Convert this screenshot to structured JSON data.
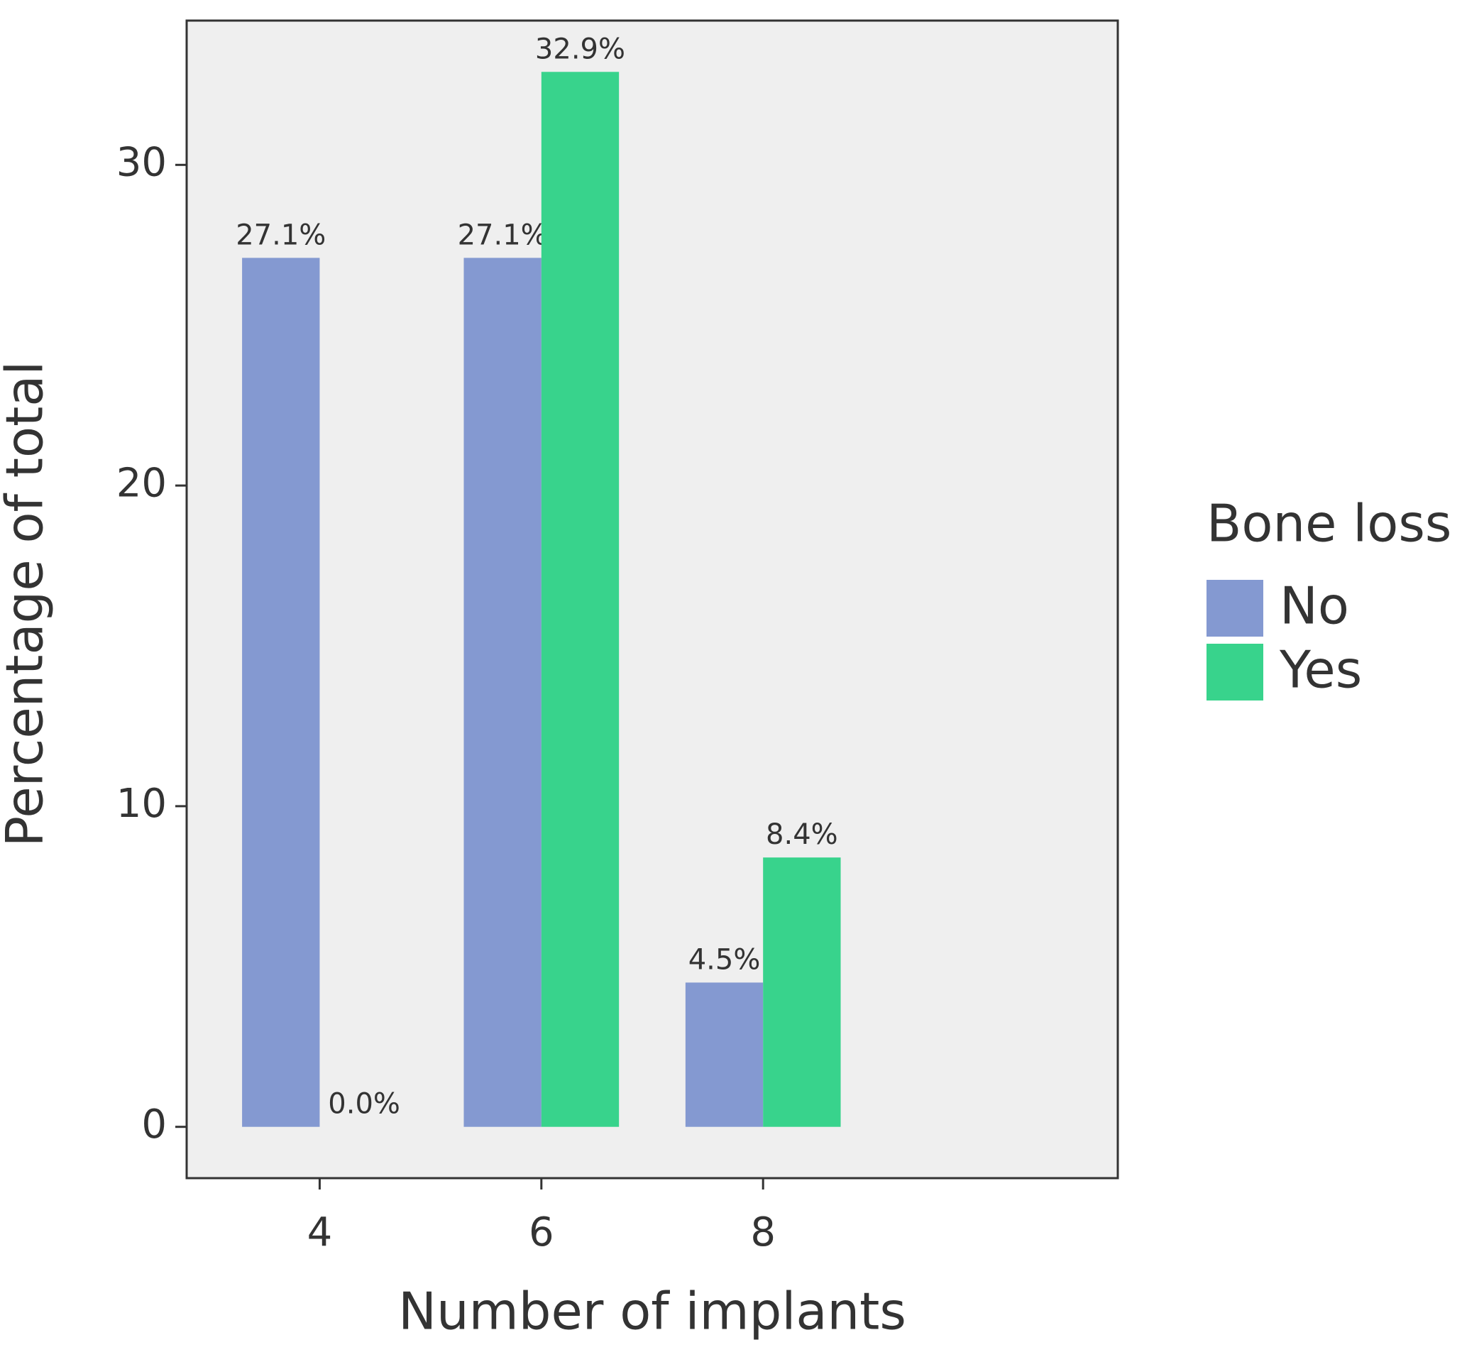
{
  "chart_data": {
    "type": "bar",
    "x_label": "Number of implants",
    "y_label": "Percentage of total",
    "categories": [
      "4",
      "6",
      "8"
    ],
    "series": [
      {
        "name": "No",
        "color": "#8499d1",
        "values": [
          27.1,
          27.1,
          4.5
        ],
        "value_labels": [
          "27.1%",
          "27.1%",
          "4.5%"
        ]
      },
      {
        "name": "Yes",
        "color": "#38d38c",
        "values": [
          0.0,
          32.9,
          8.4
        ],
        "value_labels": [
          "0.0%",
          "32.9%",
          "8.4%"
        ]
      }
    ],
    "legend_title": "Bone loss",
    "legend_position": "right",
    "ylim": [
      -1.6,
      34.5
    ],
    "yticks": [
      0,
      10,
      20,
      30
    ],
    "grid": false,
    "panel_background": "#efefef"
  }
}
